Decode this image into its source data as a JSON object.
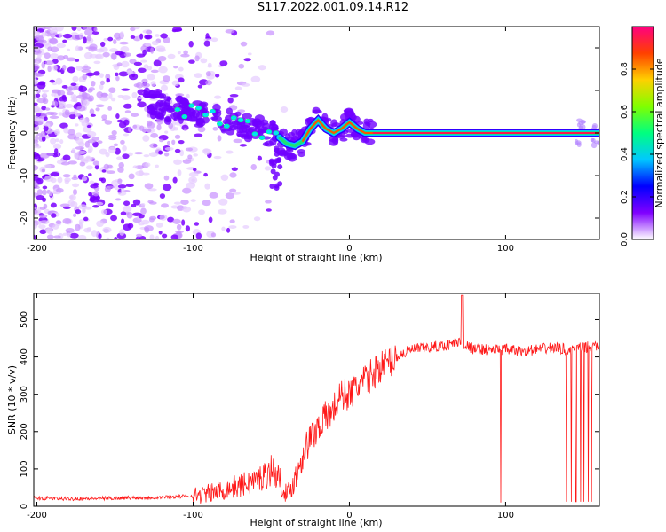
{
  "title": "S117.2022.001.09.14.R12",
  "chart_data": [
    {
      "type": "heatmap",
      "xlabel": "Height of straight line (km)",
      "ylabel": "Frequency (Hz)",
      "xlim": [
        -202,
        160
      ],
      "ylim": [
        -25,
        25
      ],
      "xticks": [
        -200,
        -100,
        0,
        100
      ],
      "yticks": [
        -20,
        -10,
        0,
        10,
        20
      ],
      "grid": false,
      "colorbar": {
        "label": "Normalized spectral amplitude",
        "range": [
          0,
          1
        ],
        "ticks": [
          "0.0",
          "0.2",
          "0.4",
          "0.6",
          "0.8"
        ],
        "colors": [
          "#ffffff",
          "#8000ff",
          "#0000ff",
          "#00c8ff",
          "#00ff80",
          "#80ff00",
          "#ffd000",
          "#ff4000",
          "#ff0080"
        ]
      },
      "ridge": {
        "x": [
          -130,
          -120,
          -110,
          -100,
          -90,
          -80,
          -70,
          -60,
          -55,
          -50,
          -45,
          -40,
          -35,
          -30,
          -25,
          -20,
          -15,
          -10,
          -5,
          0,
          5,
          10,
          15,
          160
        ],
        "freq_hz": [
          7,
          6,
          5.5,
          5,
          4,
          3,
          2,
          1,
          0,
          -0.5,
          -1,
          -2.5,
          -3,
          -2,
          1,
          3,
          1,
          0,
          1,
          2.5,
          1,
          0,
          0,
          0
        ]
      }
    },
    {
      "type": "line",
      "xlabel": "Height of straight line (km)",
      "ylabel": "SNR (10 * v/v)",
      "xlim": [
        -202,
        160
      ],
      "ylim": [
        0,
        570
      ],
      "xticks": [
        -200,
        -100,
        0,
        100
      ],
      "yticks": [
        0,
        100,
        200,
        300,
        400,
        500
      ],
      "grid": false,
      "series": [
        {
          "color": "#ff0000",
          "x": [
            -202,
            -180,
            -160,
            -140,
            -120,
            -100,
            -90,
            -80,
            -70,
            -60,
            -55,
            -50,
            -45,
            -40,
            -35,
            -30,
            -25,
            -20,
            -15,
            -10,
            -5,
            0,
            5,
            10,
            15,
            20,
            25,
            30,
            35,
            40,
            50,
            60,
            70,
            80,
            90,
            100,
            110,
            120,
            130,
            140,
            150,
            160
          ],
          "values": [
            22,
            20,
            21,
            23,
            24,
            28,
            35,
            45,
            55,
            70,
            80,
            100,
            75,
            30,
            70,
            140,
            180,
            215,
            240,
            260,
            300,
            300,
            320,
            335,
            355,
            375,
            385,
            400,
            410,
            420,
            425,
            430,
            440,
            420,
            420,
            420,
            415,
            420,
            425,
            420,
            425,
            430
          ]
        }
      ],
      "spikes_up": [
        {
          "x": 72,
          "value": 565
        }
      ],
      "dropouts": [
        {
          "x": 97,
          "value": 10
        },
        {
          "x": 139,
          "value": 12
        },
        {
          "x": 142,
          "value": 12
        },
        {
          "x": 145,
          "value": 12
        },
        {
          "x": 148,
          "value": 12
        },
        {
          "x": 150,
          "value": 12
        },
        {
          "x": 153,
          "value": 12
        },
        {
          "x": 155,
          "value": 12
        }
      ]
    }
  ]
}
